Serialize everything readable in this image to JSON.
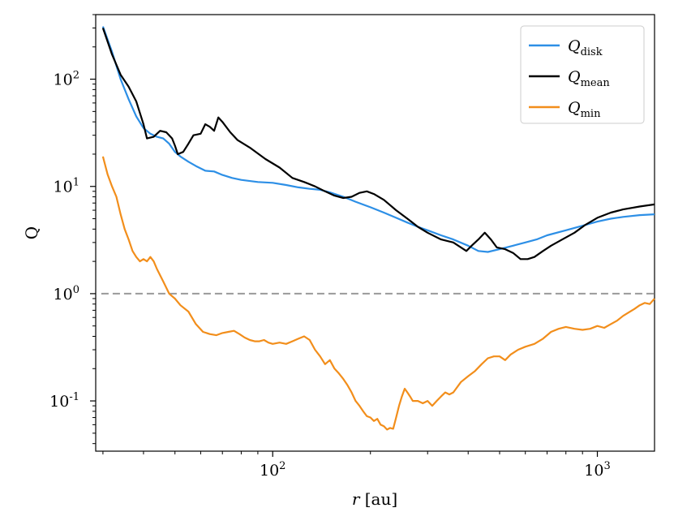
{
  "chart_data": {
    "type": "line",
    "xscale": "log",
    "yscale": "log",
    "xlim": [
      28.5,
      1500
    ],
    "ylim": [
      0.034,
      400
    ],
    "xlabel_var": "r",
    "xlabel_unit": "[au]",
    "ylabel": "Q",
    "x_major_ticks": [
      {
        "value": 100,
        "base": "10",
        "exp": "2"
      },
      {
        "value": 1000,
        "base": "10",
        "exp": "3"
      }
    ],
    "y_major_ticks": [
      {
        "value": 0.1,
        "base": "10",
        "exp": "-1"
      },
      {
        "value": 1,
        "base": "10",
        "exp": "0"
      },
      {
        "value": 10,
        "base": "10",
        "exp": "1"
      },
      {
        "value": 100,
        "base": "10",
        "exp": "2"
      }
    ],
    "reference_line": {
      "y": 1,
      "style": "dashed",
      "color": "#999999"
    },
    "legend_position": "upper right",
    "series": [
      {
        "name": "Q",
        "subscript": "disk",
        "color": "#2d8fe6",
        "points": [
          [
            30,
            310
          ],
          [
            32,
            180
          ],
          [
            34,
            100
          ],
          [
            36,
            65
          ],
          [
            38,
            45
          ],
          [
            40,
            35
          ],
          [
            42,
            31
          ],
          [
            44,
            29
          ],
          [
            46,
            28
          ],
          [
            48,
            25
          ],
          [
            50,
            21
          ],
          [
            52,
            19
          ],
          [
            55,
            17
          ],
          [
            58,
            15.5
          ],
          [
            62,
            14
          ],
          [
            66,
            13.8
          ],
          [
            70,
            12.8
          ],
          [
            75,
            12
          ],
          [
            80,
            11.5
          ],
          [
            90,
            11
          ],
          [
            100,
            10.8
          ],
          [
            110,
            10.3
          ],
          [
            120,
            9.8
          ],
          [
            130,
            9.5
          ],
          [
            140,
            9.3
          ],
          [
            150,
            8.8
          ],
          [
            165,
            8
          ],
          [
            180,
            7.2
          ],
          [
            200,
            6.4
          ],
          [
            220,
            5.7
          ],
          [
            240,
            5.1
          ],
          [
            260,
            4.6
          ],
          [
            280,
            4.2
          ],
          [
            300,
            3.9
          ],
          [
            330,
            3.5
          ],
          [
            360,
            3.2
          ],
          [
            400,
            2.8
          ],
          [
            430,
            2.5
          ],
          [
            460,
            2.45
          ],
          [
            500,
            2.6
          ],
          [
            550,
            2.8
          ],
          [
            600,
            3.0
          ],
          [
            650,
            3.2
          ],
          [
            700,
            3.5
          ],
          [
            800,
            3.9
          ],
          [
            900,
            4.3
          ],
          [
            1000,
            4.7
          ],
          [
            1100,
            5.0
          ],
          [
            1200,
            5.2
          ],
          [
            1350,
            5.4
          ],
          [
            1500,
            5.5
          ]
        ]
      },
      {
        "name": "Q",
        "subscript": "mean",
        "color": "#000000",
        "points": [
          [
            30,
            300
          ],
          [
            32,
            170
          ],
          [
            34,
            110
          ],
          [
            36,
            85
          ],
          [
            38,
            62
          ],
          [
            40,
            38
          ],
          [
            41,
            28
          ],
          [
            43,
            29
          ],
          [
            45,
            33
          ],
          [
            47,
            32
          ],
          [
            49,
            28
          ],
          [
            50,
            24
          ],
          [
            51,
            20
          ],
          [
            53,
            21
          ],
          [
            55,
            25
          ],
          [
            57,
            30
          ],
          [
            60,
            31
          ],
          [
            62,
            38
          ],
          [
            64,
            36
          ],
          [
            66,
            33
          ],
          [
            68,
            44
          ],
          [
            70,
            40
          ],
          [
            74,
            32
          ],
          [
            78,
            27
          ],
          [
            85,
            23
          ],
          [
            95,
            18
          ],
          [
            105,
            15
          ],
          [
            115,
            12
          ],
          [
            125,
            11
          ],
          [
            135,
            10
          ],
          [
            145,
            9
          ],
          [
            155,
            8.2
          ],
          [
            165,
            7.8
          ],
          [
            175,
            8
          ],
          [
            185,
            8.7
          ],
          [
            195,
            9
          ],
          [
            205,
            8.5
          ],
          [
            220,
            7.5
          ],
          [
            240,
            6
          ],
          [
            260,
            5
          ],
          [
            280,
            4.2
          ],
          [
            300,
            3.7
          ],
          [
            330,
            3.2
          ],
          [
            360,
            3.0
          ],
          [
            380,
            2.7
          ],
          [
            395,
            2.5
          ],
          [
            410,
            2.8
          ],
          [
            430,
            3.2
          ],
          [
            450,
            3.7
          ],
          [
            470,
            3.2
          ],
          [
            490,
            2.7
          ],
          [
            520,
            2.6
          ],
          [
            550,
            2.4
          ],
          [
            580,
            2.1
          ],
          [
            610,
            2.1
          ],
          [
            640,
            2.2
          ],
          [
            680,
            2.5
          ],
          [
            720,
            2.8
          ],
          [
            780,
            3.2
          ],
          [
            850,
            3.7
          ],
          [
            920,
            4.4
          ],
          [
            1000,
            5.1
          ],
          [
            1100,
            5.7
          ],
          [
            1200,
            6.1
          ],
          [
            1350,
            6.5
          ],
          [
            1500,
            6.8
          ]
        ]
      },
      {
        "name": "Q",
        "subscript": "min",
        "color": "#f28e1b",
        "points": [
          [
            30,
            19
          ],
          [
            31,
            13
          ],
          [
            32,
            10
          ],
          [
            33,
            8
          ],
          [
            34,
            5.5
          ],
          [
            35,
            4
          ],
          [
            36,
            3.2
          ],
          [
            37,
            2.5
          ],
          [
            38,
            2.2
          ],
          [
            39,
            2.0
          ],
          [
            40,
            2.1
          ],
          [
            41,
            2.0
          ],
          [
            42,
            2.2
          ],
          [
            43,
            2.0
          ],
          [
            44,
            1.7
          ],
          [
            46,
            1.3
          ],
          [
            48,
            1.0
          ],
          [
            50,
            0.9
          ],
          [
            52,
            0.78
          ],
          [
            55,
            0.68
          ],
          [
            58,
            0.52
          ],
          [
            61,
            0.44
          ],
          [
            64,
            0.42
          ],
          [
            67,
            0.41
          ],
          [
            70,
            0.43
          ],
          [
            73,
            0.44
          ],
          [
            76,
            0.45
          ],
          [
            79,
            0.42
          ],
          [
            82,
            0.39
          ],
          [
            85,
            0.37
          ],
          [
            88,
            0.36
          ],
          [
            91,
            0.36
          ],
          [
            94,
            0.37
          ],
          [
            97,
            0.35
          ],
          [
            100,
            0.34
          ],
          [
            105,
            0.35
          ],
          [
            110,
            0.34
          ],
          [
            115,
            0.36
          ],
          [
            120,
            0.38
          ],
          [
            125,
            0.4
          ],
          [
            130,
            0.37
          ],
          [
            135,
            0.3
          ],
          [
            140,
            0.26
          ],
          [
            145,
            0.22
          ],
          [
            150,
            0.24
          ],
          [
            155,
            0.2
          ],
          [
            160,
            0.18
          ],
          [
            165,
            0.16
          ],
          [
            170,
            0.14
          ],
          [
            175,
            0.12
          ],
          [
            180,
            0.1
          ],
          [
            185,
            0.09
          ],
          [
            190,
            0.08
          ],
          [
            195,
            0.072
          ],
          [
            200,
            0.07
          ],
          [
            205,
            0.065
          ],
          [
            210,
            0.068
          ],
          [
            215,
            0.06
          ],
          [
            220,
            0.058
          ],
          [
            225,
            0.054
          ],
          [
            230,
            0.056
          ],
          [
            235,
            0.055
          ],
          [
            240,
            0.07
          ],
          [
            245,
            0.09
          ],
          [
            250,
            0.11
          ],
          [
            255,
            0.13
          ],
          [
            260,
            0.12
          ],
          [
            265,
            0.11
          ],
          [
            270,
            0.1
          ],
          [
            280,
            0.1
          ],
          [
            290,
            0.095
          ],
          [
            300,
            0.1
          ],
          [
            310,
            0.09
          ],
          [
            320,
            0.1
          ],
          [
            330,
            0.11
          ],
          [
            340,
            0.12
          ],
          [
            350,
            0.115
          ],
          [
            360,
            0.12
          ],
          [
            380,
            0.15
          ],
          [
            400,
            0.17
          ],
          [
            420,
            0.19
          ],
          [
            440,
            0.22
          ],
          [
            460,
            0.25
          ],
          [
            480,
            0.26
          ],
          [
            500,
            0.26
          ],
          [
            520,
            0.24
          ],
          [
            540,
            0.27
          ],
          [
            570,
            0.3
          ],
          [
            600,
            0.32
          ],
          [
            640,
            0.34
          ],
          [
            680,
            0.38
          ],
          [
            720,
            0.44
          ],
          [
            760,
            0.47
          ],
          [
            800,
            0.49
          ],
          [
            850,
            0.47
          ],
          [
            900,
            0.46
          ],
          [
            950,
            0.47
          ],
          [
            1000,
            0.5
          ],
          [
            1050,
            0.48
          ],
          [
            1100,
            0.52
          ],
          [
            1150,
            0.56
          ],
          [
            1200,
            0.62
          ],
          [
            1250,
            0.67
          ],
          [
            1300,
            0.72
          ],
          [
            1350,
            0.78
          ],
          [
            1400,
            0.82
          ],
          [
            1450,
            0.8
          ],
          [
            1500,
            0.9
          ]
        ]
      }
    ]
  }
}
